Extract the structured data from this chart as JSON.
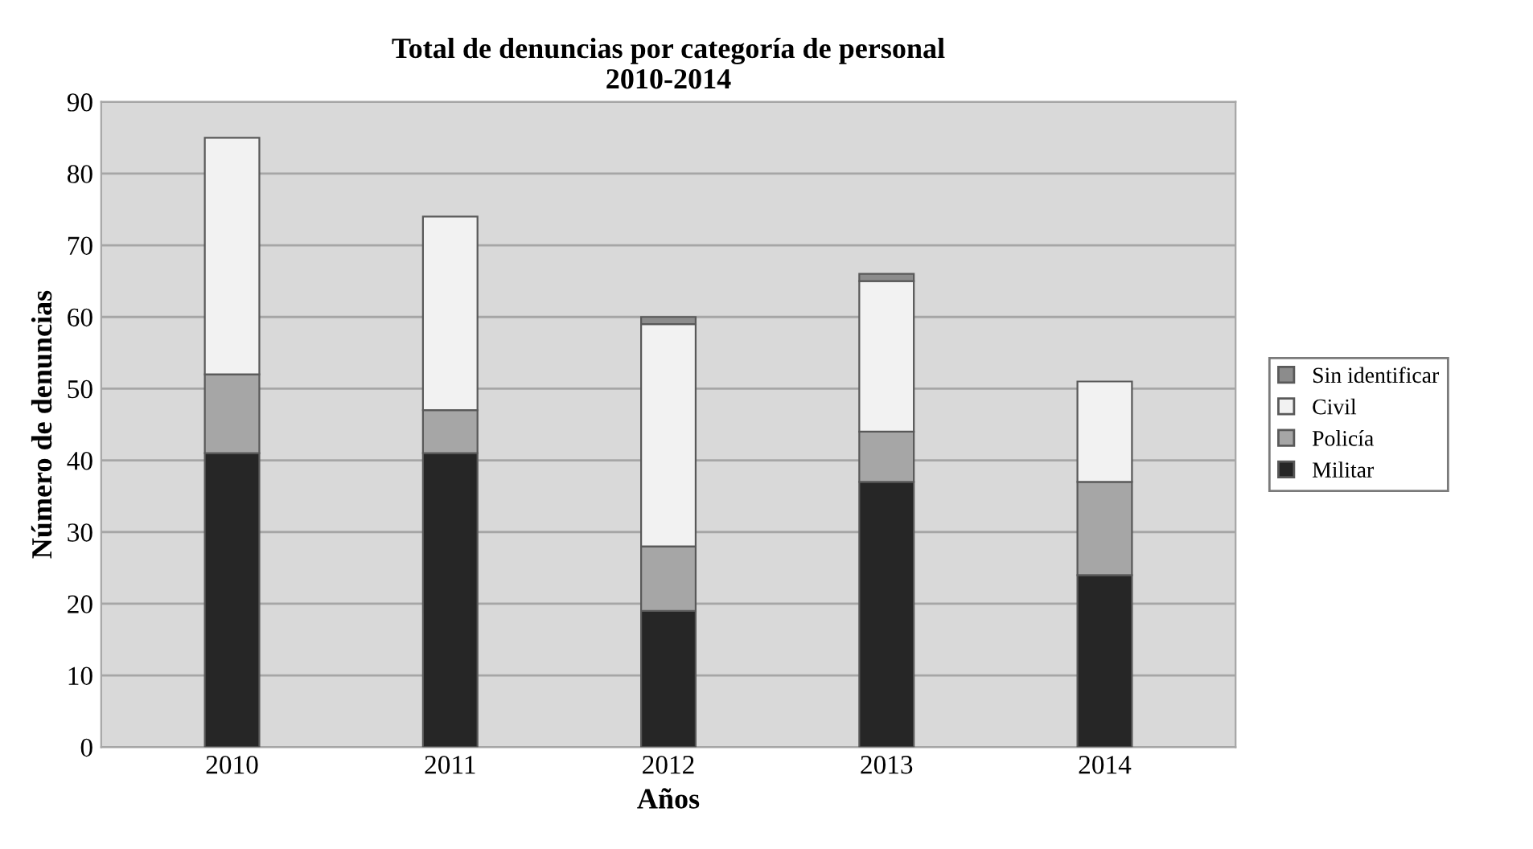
{
  "chart_data": {
    "type": "bar",
    "title": "Total de denuncias por categoría de personal\n2010-2014",
    "xlabel": "Años",
    "ylabel": "Número de denuncias",
    "categories": [
      "2010",
      "2011",
      "2012",
      "2013",
      "2014"
    ],
    "stacked": true,
    "series": [
      {
        "name": "Militar",
        "color": "#262626",
        "values": [
          41,
          41,
          19,
          37,
          24
        ]
      },
      {
        "name": "Policía",
        "color": "#a6a6a6",
        "values": [
          11,
          6,
          9,
          7,
          13
        ]
      },
      {
        "name": "Civil",
        "color": "#f2f2f2",
        "values": [
          33,
          27,
          31,
          21,
          14
        ]
      },
      {
        "name": "Sin identificar",
        "color": "#8c8c8c",
        "values": [
          null,
          null,
          1,
          1,
          null
        ]
      }
    ],
    "ylim": [
      0,
      90
    ],
    "yticks": [
      0,
      10,
      20,
      30,
      40,
      50,
      60,
      70,
      80,
      90
    ],
    "grid": "y",
    "legend": "right"
  }
}
